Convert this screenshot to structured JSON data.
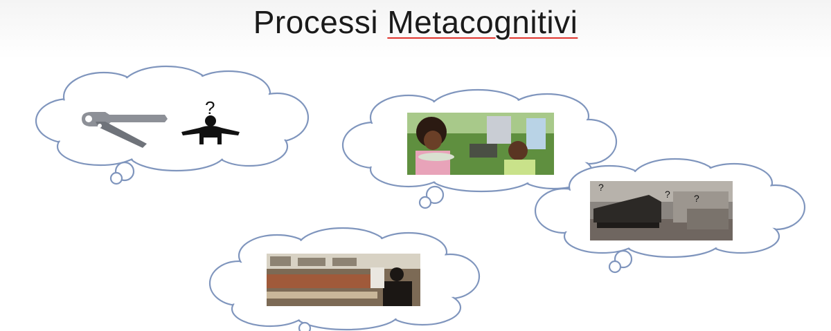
{
  "slide": {
    "title_part1": "Processi",
    "title_part2": "Metacognitivi"
  }
}
